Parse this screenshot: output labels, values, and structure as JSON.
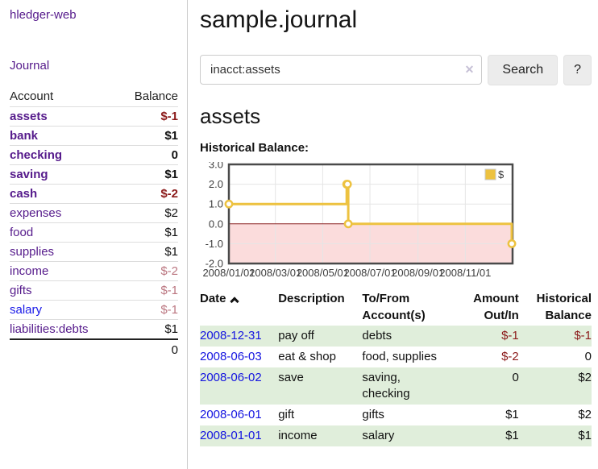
{
  "colors": {
    "link_purple": "#551A8B",
    "link_blue": "#1a1ae8",
    "negative_red": "#8b1a1a",
    "negative_muted_rose": "#bb7680",
    "stripe_green": "#e0eedb",
    "series_gold": "#EDC240",
    "negative_region_pink": "#fbdcdc",
    "zero_line_red": "#8d1f1f",
    "chart_border_gray": "#4a4a4a"
  },
  "sidebar": {
    "brand": "hledger-web",
    "nav": "Journal",
    "columns": {
      "account": "Account",
      "balance": "Balance"
    },
    "accounts": [
      {
        "name": "assets",
        "indent": 1,
        "bold": true,
        "balance": "$-1",
        "balance_class": "negative"
      },
      {
        "name": "bank",
        "indent": 2,
        "bold": true,
        "balance": "$1",
        "balance_class": "plain"
      },
      {
        "name": "checking",
        "indent": 3,
        "bold": true,
        "balance": "0",
        "balance_class": "plain"
      },
      {
        "name": "saving",
        "indent": 3,
        "bold": true,
        "balance": "$1",
        "balance_class": "plain"
      },
      {
        "name": "cash",
        "indent": 2,
        "bold": true,
        "balance": "$-2",
        "balance_class": "negative"
      },
      {
        "name": "expenses",
        "indent": 1,
        "bold": false,
        "balance": "$2",
        "balance_class": "plain"
      },
      {
        "name": "food",
        "indent": 2,
        "bold": false,
        "balance": "$1",
        "balance_class": "plain"
      },
      {
        "name": "supplies",
        "indent": 2,
        "bold": false,
        "balance": "$1",
        "balance_class": "plain"
      },
      {
        "name": "income",
        "indent": 1,
        "bold": false,
        "balance": "$-2",
        "balance_class": "negative-muted"
      },
      {
        "name": "gifts",
        "indent": 2,
        "bold": false,
        "balance": "$-1",
        "balance_class": "negative-muted"
      },
      {
        "name": "salary",
        "indent": 2,
        "bold": false,
        "link": "blue",
        "balance": "$-1",
        "balance_class": "negative-muted"
      },
      {
        "name": "liabilities:debts",
        "indent": 1,
        "bold": false,
        "balance": "$1",
        "balance_class": "plain"
      }
    ],
    "total": "0"
  },
  "main": {
    "title": "sample.journal",
    "search": {
      "value": "inacct:assets",
      "clear_icon": "✕",
      "search_button": "Search",
      "help_button": "?"
    },
    "account_heading": "assets",
    "chart_heading": "Historical Balance:"
  },
  "chart_data": {
    "type": "line",
    "step": true,
    "title": "Historical Balance",
    "legend": "$",
    "legend_position": "top-right",
    "grid": true,
    "ylim": [
      -2,
      3
    ],
    "y_ticks": [
      "3.0",
      "2.0",
      "1.0",
      "0.0",
      "-1.0",
      "-2.0"
    ],
    "x_range": [
      "2008/01/01",
      "2009/01/01"
    ],
    "x_ticks": [
      "2008/01/01",
      "2008/03/01",
      "2008/05/01",
      "2008/07/01",
      "2008/09/01",
      "2008/11/01"
    ],
    "series": [
      {
        "name": "$",
        "color": "#EDC240",
        "points": [
          [
            "2008/01/01",
            1
          ],
          [
            "2008/06/01",
            2
          ],
          [
            "2008/06/02",
            2
          ],
          [
            "2008/06/03",
            0
          ],
          [
            "2008/12/31",
            -1
          ]
        ]
      }
    ],
    "negative_region": {
      "from": 0,
      "to": -2,
      "color": "#fbdcdc",
      "line_color": "#8d1f1f"
    }
  },
  "register": {
    "columns": [
      {
        "label": "Date",
        "sorted_asc": true,
        "align": "left"
      },
      {
        "label": "Description",
        "align": "left"
      },
      {
        "label": "To/From Account(s)",
        "align": "left"
      },
      {
        "label": "Amount Out/In",
        "align": "right"
      },
      {
        "label": "Historical Balance",
        "align": "right"
      }
    ],
    "rows": [
      {
        "date": "2008-12-31",
        "description": "pay off",
        "accounts": "debts",
        "amount": "$-1",
        "amount_class": "negative",
        "balance": "$-1",
        "balance_class": "negative"
      },
      {
        "date": "2008-06-03",
        "description": "eat & shop",
        "accounts": "food, supplies",
        "amount": "$-2",
        "amount_class": "negative",
        "balance": "0",
        "balance_class": "plain"
      },
      {
        "date": "2008-06-02",
        "description": "save",
        "accounts": "saving, checking",
        "amount": "0",
        "amount_class": "plain",
        "balance": "$2",
        "balance_class": "plain"
      },
      {
        "date": "2008-06-01",
        "description": "gift",
        "accounts": "gifts",
        "amount": "$1",
        "amount_class": "plain",
        "balance": "$2",
        "balance_class": "plain"
      },
      {
        "date": "2008-01-01",
        "description": "income",
        "accounts": "salary",
        "amount": "$1",
        "amount_class": "plain",
        "balance": "$1",
        "balance_class": "plain"
      }
    ]
  }
}
